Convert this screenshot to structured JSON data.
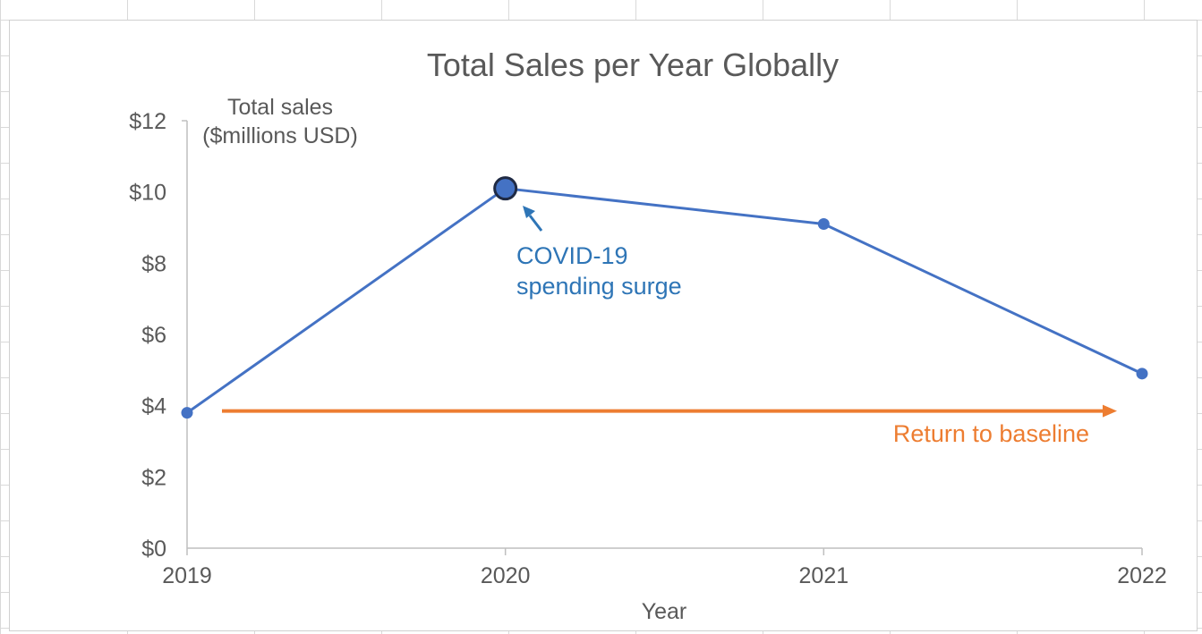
{
  "chart_data": {
    "type": "line",
    "title": "Total Sales per Year Globally",
    "xlabel": "Year",
    "ylabel_lines": [
      "Total sales",
      "($millions USD)"
    ],
    "x": [
      "2019",
      "2020",
      "2021",
      "2022"
    ],
    "series": [
      {
        "values": [
          3.8,
          10.1,
          9.1,
          4.9
        ],
        "color": "#4472c4"
      }
    ],
    "ylim": [
      0,
      12
    ],
    "yticks": [
      0,
      2,
      4,
      6,
      8,
      10,
      12
    ],
    "ytick_labels": [
      "$0",
      "$2",
      "$4",
      "$6",
      "$8",
      "$10",
      "$12"
    ],
    "highlight_point": {
      "x": "2020",
      "value": 10.1
    },
    "annotations": {
      "covid_line1": "COVID-19",
      "covid_line2": "spending surge",
      "baseline": "Return to baseline"
    },
    "colors": {
      "line": "#4472c4",
      "annotation_blue": "#2e75b6",
      "annotation_orange": "#ed7d31",
      "highlight_edge": "#1f2a44"
    }
  }
}
